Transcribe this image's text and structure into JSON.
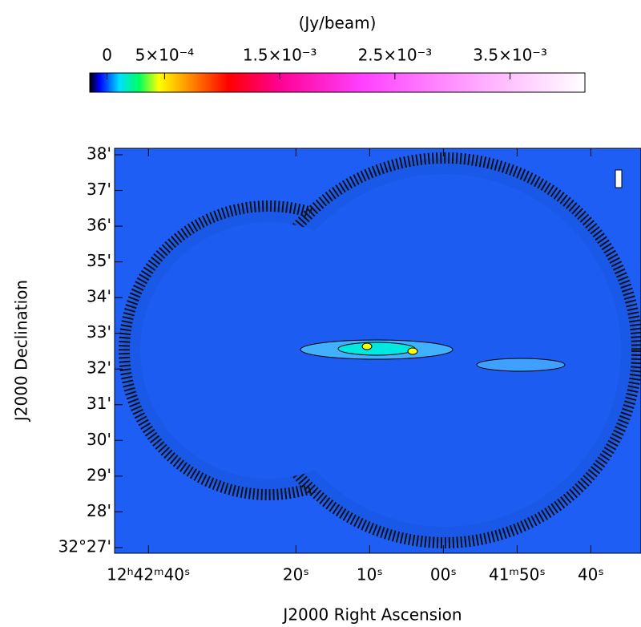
{
  "chart_data": {
    "type": "image",
    "colorbar_label": "(Jy/beam)",
    "colorbar_lim": [
      -0.00015,
      0.00415
    ],
    "colorbar_ticks": [
      {
        "value": 0,
        "label": "0"
      },
      {
        "value": 0.0005,
        "label": "5×10⁻⁴"
      },
      {
        "value": 0.0015,
        "label": "1.5×10⁻³"
      },
      {
        "value": 0.0025,
        "label": "2.5×10⁻³"
      },
      {
        "value": 0.0035,
        "label": "3.5×10⁻³"
      }
    ],
    "xlabel": "J2000 Right Ascension",
    "ylabel": "J2000 Declination",
    "xlim": [
      104.6,
      33.2
    ],
    "xticks": [
      {
        "value": 100,
        "label": "12ʰ42ᵐ40ˢ"
      },
      {
        "value": 80,
        "label": "20ˢ"
      },
      {
        "value": 70,
        "label": "10ˢ"
      },
      {
        "value": 60,
        "label": "00ˢ"
      },
      {
        "value": 50,
        "label": "41ᵐ50ˢ"
      },
      {
        "value": 40,
        "label": "40ˢ"
      }
    ],
    "ylim": [
      26.84,
      38.18
    ],
    "yticks": [
      {
        "value": 27,
        "label": "32°27'"
      },
      {
        "value": 28,
        "label": "28'"
      },
      {
        "value": 29,
        "label": "29'"
      },
      {
        "value": 30,
        "label": "30'"
      },
      {
        "value": 31,
        "label": "31'"
      },
      {
        "value": 32,
        "label": "32'"
      },
      {
        "value": 33,
        "label": "33'"
      },
      {
        "value": 34,
        "label": "34'"
      },
      {
        "value": 35,
        "label": "35'"
      },
      {
        "value": 36,
        "label": "36'"
      },
      {
        "value": 37,
        "label": "37'"
      },
      {
        "value": 38,
        "label": "38'"
      }
    ]
  }
}
